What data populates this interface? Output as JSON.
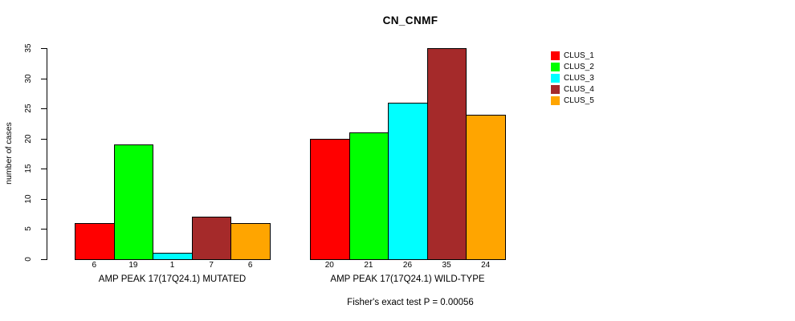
{
  "chart_data": {
    "type": "bar",
    "title": "CN_CNMF",
    "ylabel": "number of cases",
    "xlabel": "",
    "ylim": [
      0,
      35
    ],
    "yticks": [
      0,
      5,
      10,
      15,
      20,
      25,
      30,
      35
    ],
    "grid": false,
    "legend_position": "right",
    "categories": [
      "CLUS_1",
      "CLUS_2",
      "CLUS_3",
      "CLUS_4",
      "CLUS_5"
    ],
    "series_colors": [
      "#FF0000",
      "#00FF00",
      "#00FFFF",
      "#A52A2A",
      "#FFA500"
    ],
    "groups": [
      {
        "label": "AMP PEAK 17(17Q24.1) MUTATED",
        "values": [
          6,
          19,
          1,
          7,
          6
        ]
      },
      {
        "label": "AMP PEAK 17(17Q24.1) WILD-TYPE",
        "values": [
          20,
          21,
          26,
          35,
          24
        ]
      }
    ],
    "legend": [
      {
        "label": "CLUS_1",
        "color": "#FF0000"
      },
      {
        "label": "CLUS_2",
        "color": "#00FF00"
      },
      {
        "label": "CLUS_3",
        "color": "#00FFFF"
      },
      {
        "label": "CLUS_4",
        "color": "#A52A2A"
      },
      {
        "label": "CLUS_5",
        "color": "#FFA500"
      }
    ],
    "annotation": "Fisher's exact test P = 0.00056",
    "axis_color": "#000000",
    "bar_border_color": "#000000"
  }
}
